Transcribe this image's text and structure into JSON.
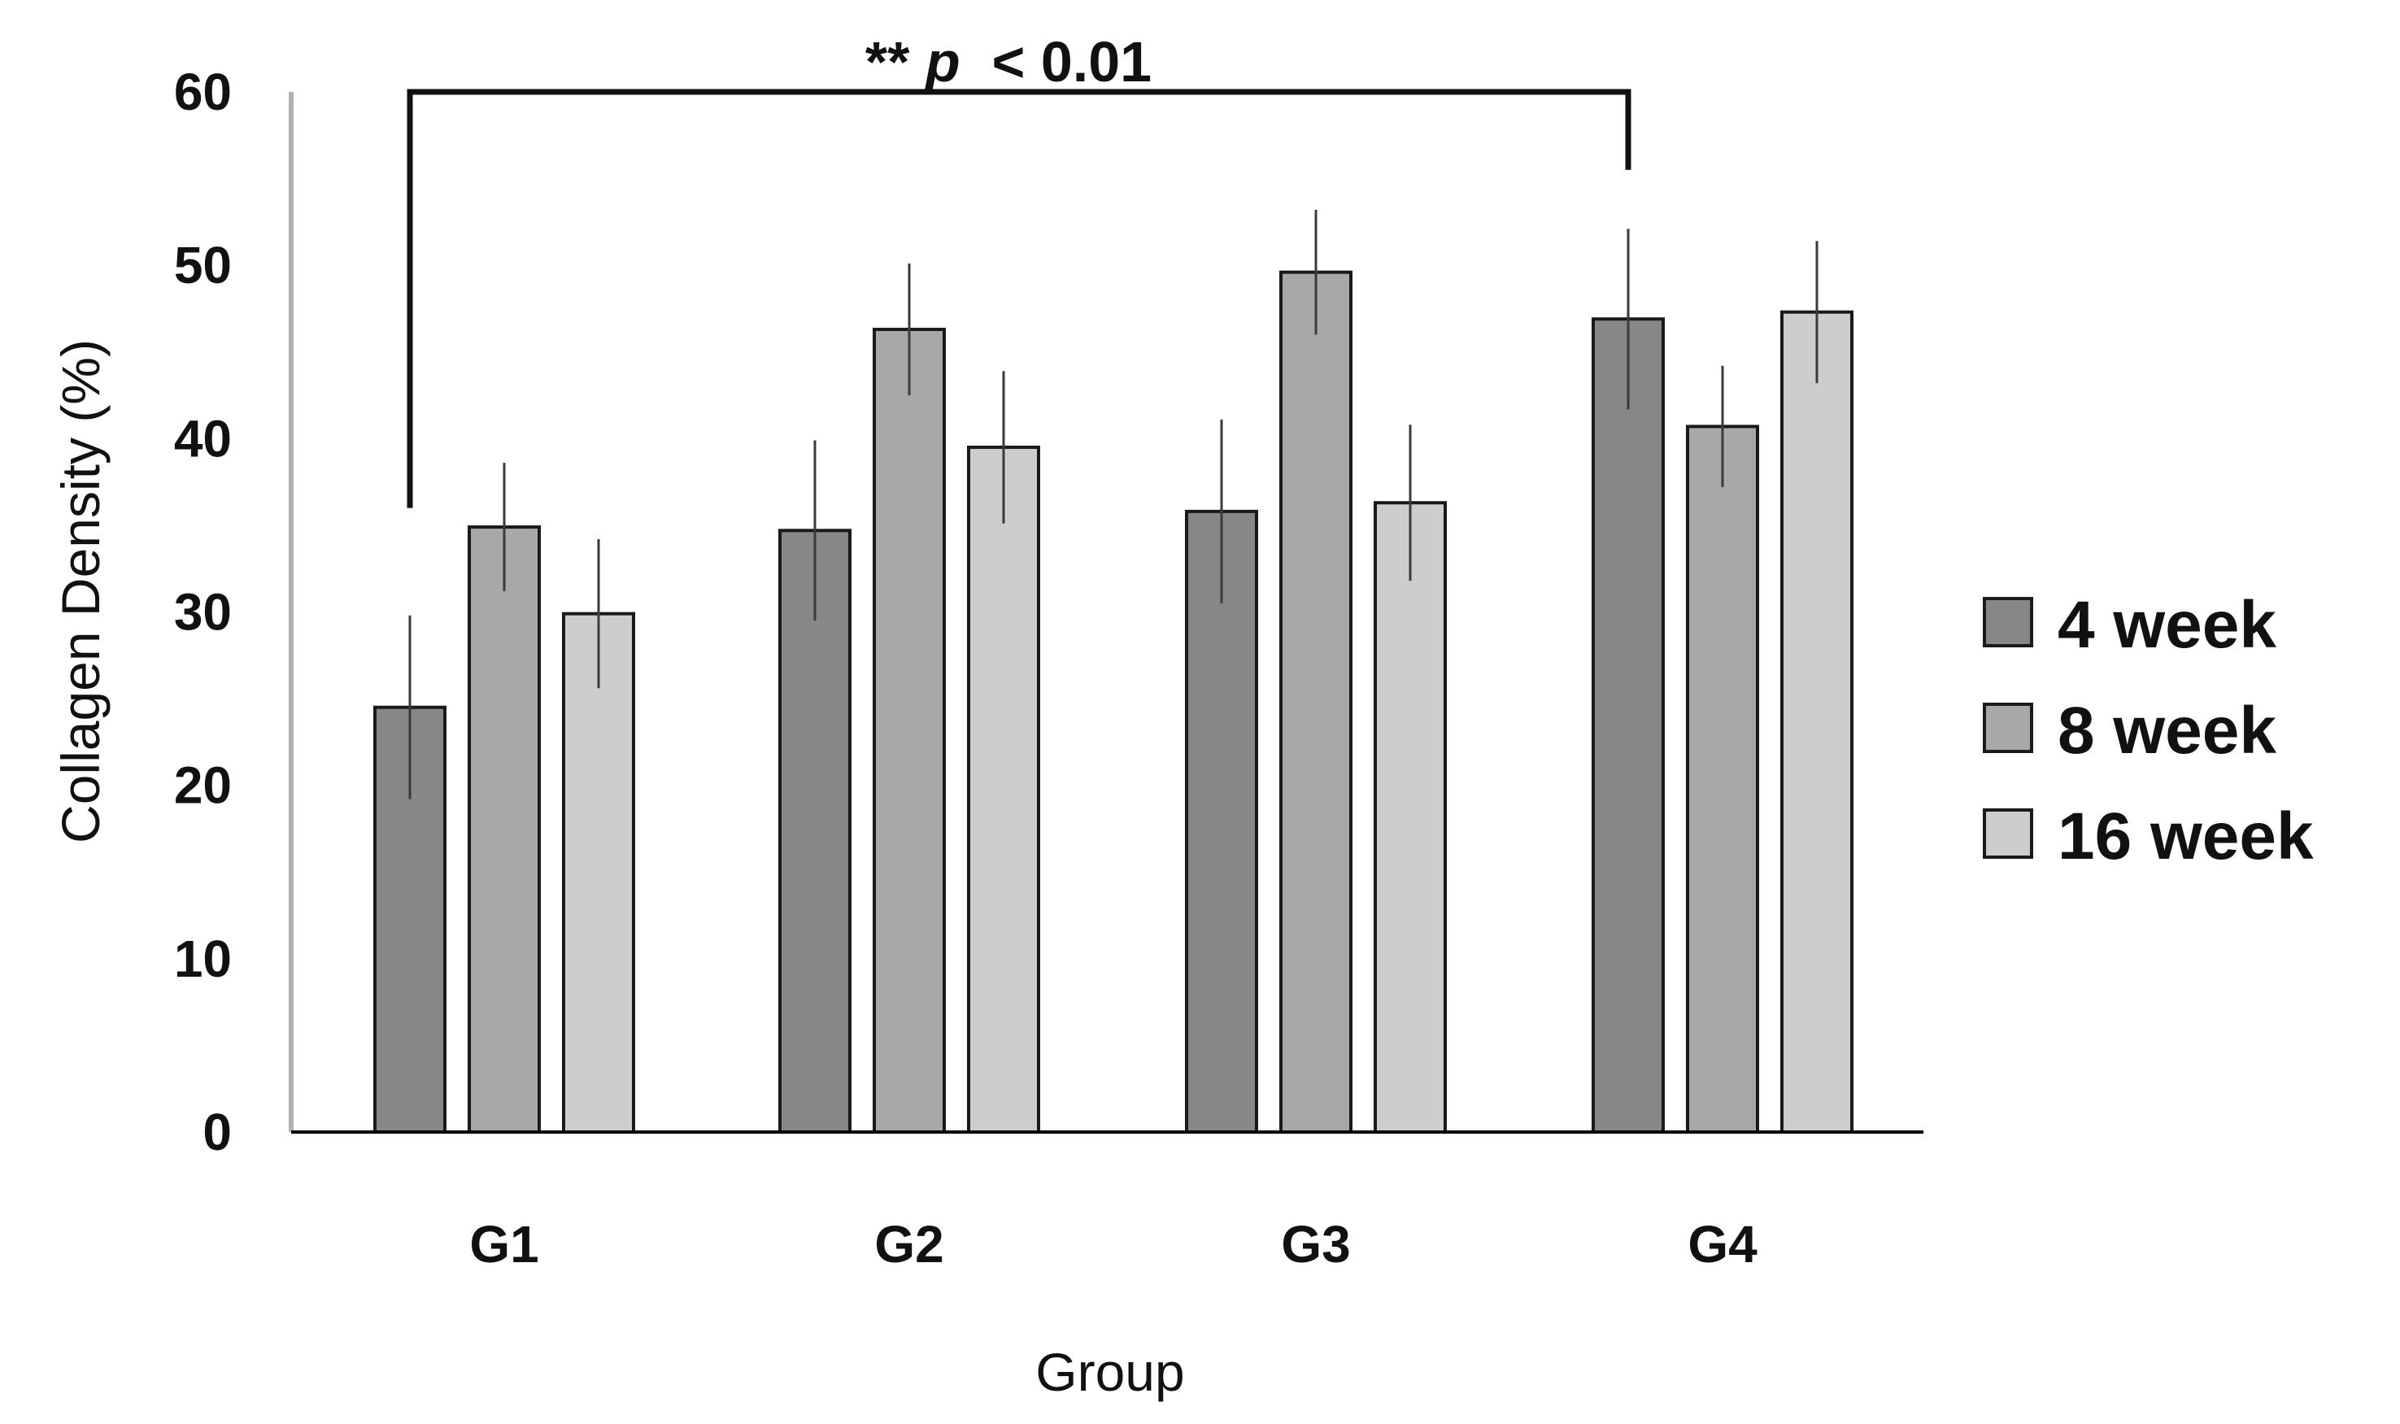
{
  "chart_data": {
    "type": "bar",
    "xlabel": "Group",
    "ylabel": "Collagen Density (%)",
    "ylim": [
      0,
      60
    ],
    "yticks": [
      "0",
      "10",
      "20",
      "30",
      "40",
      "50",
      "60"
    ],
    "categories": [
      "G1",
      "G2",
      "G3",
      "G4"
    ],
    "series": [
      {
        "name": "4 week",
        "color": "#878787",
        "values": [
          24.5,
          34.7,
          35.8,
          46.9
        ],
        "errors": [
          5.3,
          5.2,
          5.3,
          5.2
        ]
      },
      {
        "name": "8 week",
        "color": "#a8a8a8",
        "values": [
          34.9,
          46.3,
          49.6,
          40.7
        ],
        "errors": [
          3.7,
          3.8,
          3.6,
          3.5
        ]
      },
      {
        "name": "16 week",
        "color": "#cdcdcd",
        "values": [
          29.9,
          39.5,
          36.3,
          47.3
        ],
        "errors": [
          4.3,
          4.4,
          4.5,
          4.1
        ]
      }
    ],
    "grid": false,
    "legend": "right",
    "annotation": {
      "stars": "**",
      "p": "p",
      "rest": " < 0.01",
      "from_category": "G1",
      "to_category": "G4",
      "left_bottom_value": 36,
      "right_bottom_value": 55.5,
      "top_value": 60
    }
  }
}
